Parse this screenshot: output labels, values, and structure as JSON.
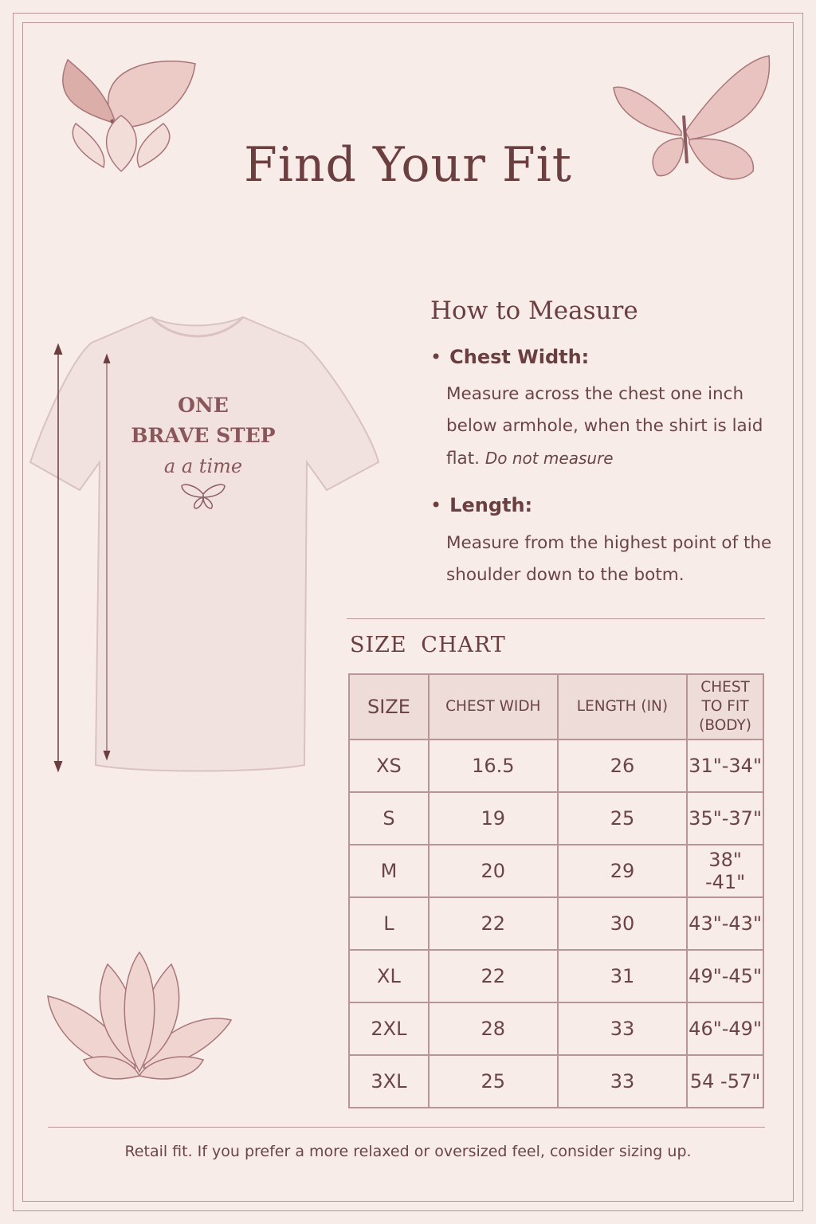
{
  "title": "Find Your Fit",
  "shirt_print": {
    "line1": "ONE",
    "line2": "BRAVE STEP",
    "line3": "a a time"
  },
  "how_to_measure": {
    "heading": "How to Measure",
    "items": [
      {
        "label": "Chest Width:",
        "text": "Measure across the chest one inch below armhole, when the shirt is laid flat.",
        "italic": "Do not measure"
      },
      {
        "label": "Length:",
        "text": "Measure from the highest point of the shoulder down to the botm."
      }
    ]
  },
  "size_chart": {
    "heading": "SIZE CHART",
    "columns": [
      "SIZE",
      "CHEST WIDH",
      "LENGTH (IN)",
      "CHEST TO FIT (BODY)"
    ],
    "rows": [
      [
        "XS",
        "16.5",
        "26",
        "31\"-34\""
      ],
      [
        "S",
        "19",
        "25",
        "35\"-37\""
      ],
      [
        "M",
        "20",
        "29",
        "38\" -41\""
      ],
      [
        "L",
        "22",
        "30",
        "43\"-43\""
      ],
      [
        "XL",
        "22",
        "31",
        "49\"-45\""
      ],
      [
        "2XL",
        "28",
        "33",
        "46\"-49\""
      ],
      [
        "3XL",
        "25",
        "33",
        "54 -57\""
      ]
    ]
  },
  "footer": "Retail fit. If you prefer a more relaxed or oversized feel, consider sizing up.",
  "colors": {
    "background": "#f8ece9",
    "text": "#6b3f40",
    "border": "#b89598",
    "header_fill": "#eedcd9"
  }
}
